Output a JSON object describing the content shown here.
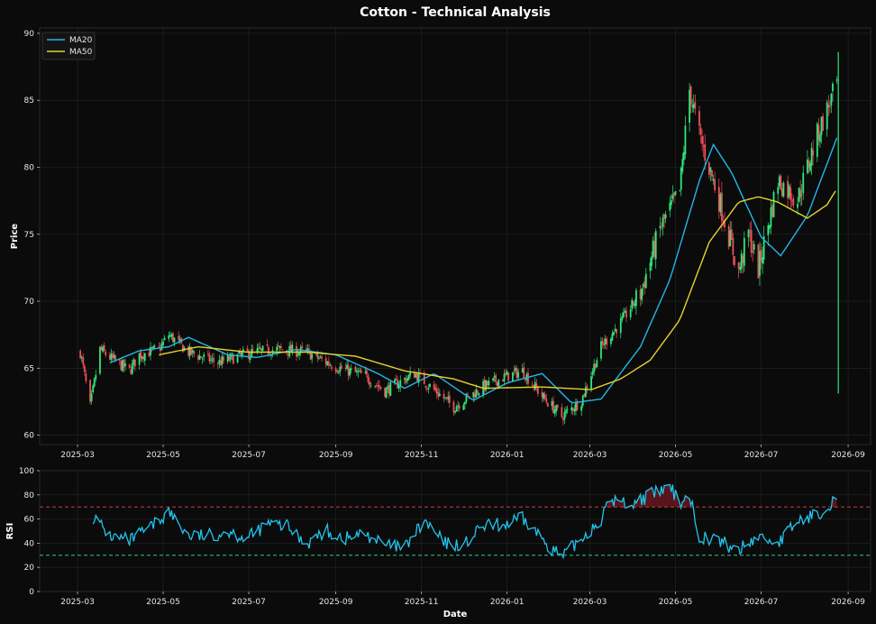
{
  "chart_data": [
    {
      "type": "candlestick",
      "title": "Cotton - Technical Analysis",
      "xlabel": "",
      "ylabel": "Price",
      "ylim": [
        59.3,
        90.4
      ],
      "yticks": [
        60,
        65,
        70,
        75,
        80,
        85,
        90
      ],
      "xrange": [
        "2025-02-02",
        "2026-09-17"
      ],
      "xticks": [
        "2025-03",
        "2025-05",
        "2025-07",
        "2025-09",
        "2025-11",
        "2026-01",
        "2026-03",
        "2026-05",
        "2026-07",
        "2026-09"
      ],
      "grid": true,
      "legend": {
        "position": "top-left",
        "entries": [
          "MA20",
          "MA50"
        ]
      },
      "colors": {
        "up": "#2ee87a",
        "down": "#f0505a",
        "ma20": "#22b8e6",
        "ma50": "#e6d22e"
      },
      "close_anchors": [
        [
          "2025-03-03",
          66.2
        ],
        [
          "2025-03-10",
          62.1
        ],
        [
          "2025-03-17",
          66.4
        ],
        [
          "2025-03-24",
          65.8
        ],
        [
          "2025-04-07",
          64.8
        ],
        [
          "2025-04-14",
          66.0
        ],
        [
          "2025-04-28",
          66.4
        ],
        [
          "2025-05-05",
          67.5
        ],
        [
          "2025-05-19",
          66.2
        ],
        [
          "2025-06-09",
          65.4
        ],
        [
          "2025-06-30",
          66.1
        ],
        [
          "2025-07-21",
          66.4
        ],
        [
          "2025-08-11",
          66.2
        ],
        [
          "2025-09-01",
          65.1
        ],
        [
          "2025-09-22",
          64.4
        ],
        [
          "2025-10-06",
          63.3
        ],
        [
          "2025-10-27",
          64.6
        ],
        [
          "2025-11-10",
          63.4
        ],
        [
          "2025-11-24",
          62.1
        ],
        [
          "2025-12-15",
          63.6
        ],
        [
          "2025-12-29",
          64.3
        ],
        [
          "2026-01-12",
          64.8
        ],
        [
          "2026-01-26",
          62.9
        ],
        [
          "2026-02-09",
          61.4
        ],
        [
          "2026-02-23",
          62.6
        ],
        [
          "2026-03-09",
          66.6
        ],
        [
          "2026-03-23",
          68.4
        ],
        [
          "2026-04-06",
          70.6
        ],
        [
          "2026-04-20",
          75.4
        ],
        [
          "2026-05-04",
          78.2
        ],
        [
          "2026-05-11",
          85.8
        ],
        [
          "2026-05-18",
          82.4
        ],
        [
          "2026-06-01",
          77.6
        ],
        [
          "2026-06-15",
          72.2
        ],
        [
          "2026-06-22",
          75.1
        ],
        [
          "2026-06-29",
          72.4
        ],
        [
          "2026-07-13",
          79.0
        ],
        [
          "2026-07-27",
          77.6
        ],
        [
          "2026-08-10",
          82.4
        ],
        [
          "2026-08-24",
          86.2
        ]
      ],
      "ma20_anchors": [
        [
          "2025-03-24",
          65.4
        ],
        [
          "2025-04-14",
          66.3
        ],
        [
          "2025-05-05",
          66.6
        ],
        [
          "2025-05-19",
          67.3
        ],
        [
          "2025-06-16",
          66.0
        ],
        [
          "2025-07-07",
          65.8
        ],
        [
          "2025-08-04",
          66.4
        ],
        [
          "2025-09-01",
          66.0
        ],
        [
          "2025-10-01",
          64.6
        ],
        [
          "2025-10-20",
          63.5
        ],
        [
          "2025-11-10",
          64.6
        ],
        [
          "2025-12-08",
          62.6
        ],
        [
          "2026-01-01",
          63.9
        ],
        [
          "2026-01-26",
          64.6
        ],
        [
          "2026-02-16",
          62.4
        ],
        [
          "2026-03-09",
          62.7
        ],
        [
          "2026-04-06",
          66.6
        ],
        [
          "2026-04-27",
          71.6
        ],
        [
          "2026-05-18",
          79.0
        ],
        [
          "2026-05-28",
          81.7
        ],
        [
          "2026-06-10",
          79.6
        ],
        [
          "2026-07-01",
          74.8
        ],
        [
          "2026-07-15",
          73.4
        ],
        [
          "2026-08-03",
          76.4
        ],
        [
          "2026-08-24",
          82.2
        ]
      ],
      "ma50_anchors": [
        [
          "2025-04-28",
          66.0
        ],
        [
          "2025-05-26",
          66.6
        ],
        [
          "2025-06-30",
          66.2
        ],
        [
          "2025-08-11",
          66.2
        ],
        [
          "2025-09-15",
          65.9
        ],
        [
          "2025-10-20",
          64.8
        ],
        [
          "2025-11-24",
          64.2
        ],
        [
          "2025-12-15",
          63.5
        ],
        [
          "2026-01-26",
          63.6
        ],
        [
          "2026-03-02",
          63.4
        ],
        [
          "2026-03-23",
          64.2
        ],
        [
          "2026-04-13",
          65.6
        ],
        [
          "2026-05-04",
          68.6
        ],
        [
          "2026-05-25",
          74.4
        ],
        [
          "2026-06-15",
          77.4
        ],
        [
          "2026-06-29",
          77.8
        ],
        [
          "2026-07-13",
          77.4
        ],
        [
          "2026-08-03",
          76.2
        ],
        [
          "2026-08-17",
          77.2
        ],
        [
          "2026-08-24",
          78.4
        ]
      ]
    },
    {
      "type": "line",
      "title": "",
      "xlabel": "Date",
      "ylabel": "RSI",
      "ylim": [
        0,
        100
      ],
      "yticks": [
        0,
        20,
        40,
        60,
        80,
        100
      ],
      "xrange": [
        "2025-02-02",
        "2026-09-17"
      ],
      "xticks": [
        "2025-03",
        "2025-05",
        "2025-07",
        "2025-09",
        "2025-11",
        "2026-01",
        "2026-03",
        "2026-05",
        "2026-07",
        "2026-09"
      ],
      "grid": true,
      "reference_lines": [
        {
          "value": 70,
          "color": "#e64646"
        },
        {
          "value": 30,
          "color": "#2ee89a"
        }
      ],
      "colors": {
        "line": "#22c4ec",
        "overbought_fill": "#7a1a22"
      },
      "rsi_anchors": [
        [
          "2025-03-12",
          62
        ],
        [
          "2025-03-24",
          46
        ],
        [
          "2025-04-07",
          42
        ],
        [
          "2025-04-21",
          52
        ],
        [
          "2025-05-05",
          66
        ],
        [
          "2025-05-19",
          46
        ],
        [
          "2025-06-02",
          46
        ],
        [
          "2025-06-16",
          50
        ],
        [
          "2025-06-30",
          44
        ],
        [
          "2025-07-14",
          56
        ],
        [
          "2025-07-28",
          54
        ],
        [
          "2025-08-11",
          40
        ],
        [
          "2025-08-25",
          50
        ],
        [
          "2025-09-08",
          44
        ],
        [
          "2025-09-22",
          48
        ],
        [
          "2025-10-06",
          38
        ],
        [
          "2025-10-20",
          36
        ],
        [
          "2025-11-03",
          58
        ],
        [
          "2025-11-17",
          40
        ],
        [
          "2025-12-01",
          38
        ],
        [
          "2025-12-15",
          54
        ],
        [
          "2025-12-29",
          55
        ],
        [
          "2026-01-12",
          60
        ],
        [
          "2026-01-26",
          44
        ],
        [
          "2026-02-09",
          28
        ],
        [
          "2026-02-23",
          44
        ],
        [
          "2026-03-09",
          60
        ],
        [
          "2026-03-16",
          76
        ],
        [
          "2026-03-30",
          72
        ],
        [
          "2026-04-13",
          80
        ],
        [
          "2026-04-27",
          86
        ],
        [
          "2026-05-04",
          74
        ],
        [
          "2026-05-11",
          80
        ],
        [
          "2026-05-18",
          46
        ],
        [
          "2026-06-01",
          42
        ],
        [
          "2026-06-15",
          34
        ],
        [
          "2026-06-29",
          46
        ],
        [
          "2026-07-13",
          40
        ],
        [
          "2026-07-27",
          58
        ],
        [
          "2026-08-10",
          64
        ],
        [
          "2026-08-24",
          78
        ]
      ]
    }
  ]
}
